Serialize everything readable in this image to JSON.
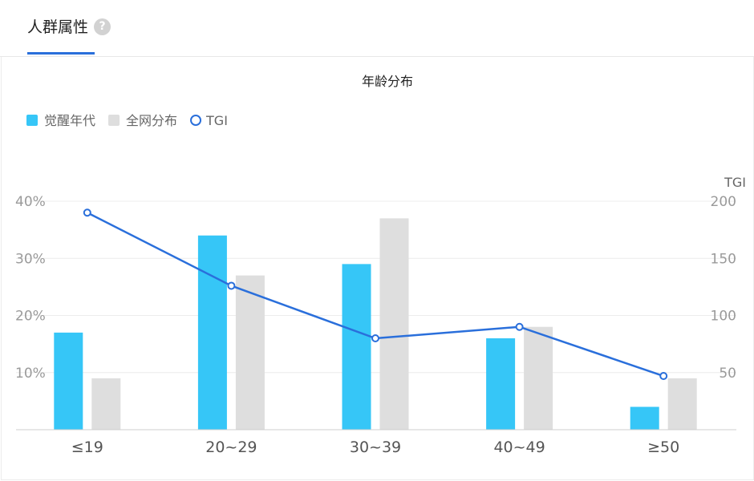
{
  "header": {
    "tab_title": "人群属性",
    "help_icon": "question-circle-icon"
  },
  "colors": {
    "accent": "#2a6fdb",
    "series_a": "#36c6f7",
    "series_b": "#dedede",
    "tgi_line": "#2a6fdb"
  },
  "chart_data": {
    "type": "bar",
    "title": "年龄分布",
    "categories": [
      "≤19",
      "20~29",
      "30~39",
      "40~49",
      "≥50"
    ],
    "series": [
      {
        "name": "觉醒年代",
        "type": "bar",
        "axis": "left",
        "values": [
          17,
          34,
          29,
          16,
          4
        ]
      },
      {
        "name": "全网分布",
        "type": "bar",
        "axis": "left",
        "values": [
          9,
          27,
          37,
          18,
          9
        ]
      },
      {
        "name": "TGI",
        "type": "line",
        "axis": "right",
        "values": [
          190,
          126,
          80,
          90,
          47
        ]
      }
    ],
    "y_left": {
      "ticks": [
        10,
        20,
        30,
        40
      ],
      "tick_labels": [
        "10%",
        "20%",
        "30%",
        "40%"
      ],
      "range": [
        0,
        40
      ]
    },
    "y_right": {
      "label": "TGI",
      "ticks": [
        50,
        100,
        150,
        200
      ],
      "range": [
        0,
        200
      ]
    },
    "legend_position": "top-left",
    "grid": true
  }
}
